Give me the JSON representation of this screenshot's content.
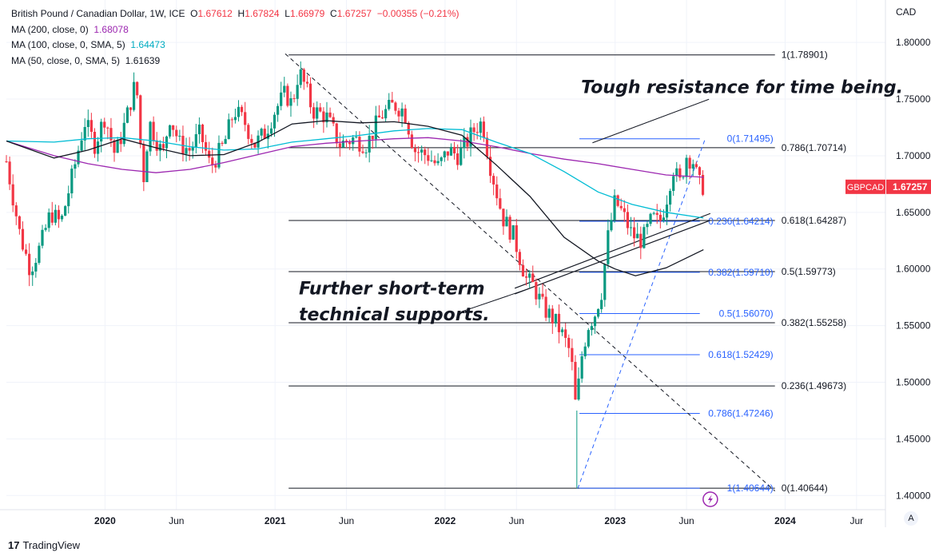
{
  "header": {
    "symbol": "British Pound / Canadian Dollar, 1W, ICE",
    "ohlc": {
      "o_label": "O",
      "o": "1.67612",
      "h_label": "H",
      "h": "1.67824",
      "l_label": "L",
      "l": "1.66979",
      "c_label": "C",
      "c": "1.67257",
      "change": "−0.00355 (−0.21%)"
    },
    "ma200_label": "MA (200, close, 0)",
    "ma200_value": "1.68078",
    "ma200_color": "#9c27b0",
    "ma100_label": "MA (100, close, 0, SMA, 5)",
    "ma100_value": "1.64473",
    "ma100_color": "#00bcd4",
    "ma50_label": "MA (50, close, 0, SMA, 5)",
    "ma50_value": "1.61639",
    "ma50_color": "#131722"
  },
  "branding": "TradingView",
  "corner_button": "A",
  "chart_data": {
    "type": "candlestick",
    "currency": "CAD",
    "price_tag": {
      "label": "GBPCAD",
      "value": "1.67257",
      "color": "#f23645"
    },
    "y_ticks": [
      "1.80000",
      "1.75000",
      "1.70000",
      "1.65000",
      "1.60000",
      "1.55000",
      "1.50000",
      "1.45000",
      "1.40000"
    ],
    "ylim": [
      1.3875,
      1.8375
    ],
    "x_ticks": [
      {
        "label": "2020",
        "bold": true,
        "t": 2020.0
      },
      {
        "label": "Jun",
        "bold": false,
        "t": 2020.42
      },
      {
        "label": "2021",
        "bold": true,
        "t": 2021.0
      },
      {
        "label": "Jun",
        "bold": false,
        "t": 2021.42
      },
      {
        "label": "2022",
        "bold": true,
        "t": 2022.0
      },
      {
        "label": "Jun",
        "bold": false,
        "t": 2022.42
      },
      {
        "label": "2023",
        "bold": true,
        "t": 2023.0
      },
      {
        "label": "Jun",
        "bold": false,
        "t": 2023.42
      },
      {
        "label": "2024",
        "bold": true,
        "t": 2024.0
      },
      {
        "label": "Jur",
        "bold": false,
        "t": 2024.42
      }
    ],
    "xlim": [
      2019.42,
      2024.59
    ],
    "price_path": [
      [
        2019.42,
        1.695
      ],
      [
        2019.5,
        1.63
      ],
      [
        2019.56,
        1.6
      ],
      [
        2019.62,
        1.62
      ],
      [
        2019.68,
        1.65
      ],
      [
        2019.74,
        1.64
      ],
      [
        2019.82,
        1.69
      ],
      [
        2019.88,
        1.73
      ],
      [
        2019.94,
        1.71
      ],
      [
        2020.0,
        1.735
      ],
      [
        2020.06,
        1.7
      ],
      [
        2020.12,
        1.73
      ],
      [
        2020.18,
        1.765
      ],
      [
        2020.2,
        1.74
      ],
      [
        2020.22,
        1.67
      ],
      [
        2020.26,
        1.73
      ],
      [
        2020.3,
        1.715
      ],
      [
        2020.34,
        1.7
      ],
      [
        2020.38,
        1.735
      ],
      [
        2020.44,
        1.71
      ],
      [
        2020.5,
        1.705
      ],
      [
        2020.56,
        1.72
      ],
      [
        2020.62,
        1.69
      ],
      [
        2020.7,
        1.71
      ],
      [
        2020.76,
        1.74
      ],
      [
        2020.82,
        1.73
      ],
      [
        2020.88,
        1.71
      ],
      [
        2020.94,
        1.72
      ],
      [
        2021.0,
        1.74
      ],
      [
        2021.06,
        1.755
      ],
      [
        2021.1,
        1.745
      ],
      [
        2021.14,
        1.775
      ],
      [
        2021.18,
        1.76
      ],
      [
        2021.22,
        1.74
      ],
      [
        2021.3,
        1.735
      ],
      [
        2021.38,
        1.71
      ],
      [
        2021.46,
        1.715
      ],
      [
        2021.54,
        1.71
      ],
      [
        2021.62,
        1.735
      ],
      [
        2021.7,
        1.745
      ],
      [
        2021.76,
        1.74
      ],
      [
        2021.82,
        1.705
      ],
      [
        2021.9,
        1.7
      ],
      [
        2021.96,
        1.69
      ],
      [
        2022.02,
        1.705
      ],
      [
        2022.08,
        1.7
      ],
      [
        2022.14,
        1.715
      ],
      [
        2022.18,
        1.725
      ],
      [
        2022.22,
        1.73
      ],
      [
        2022.26,
        1.695
      ],
      [
        2022.3,
        1.67
      ],
      [
        2022.34,
        1.645
      ],
      [
        2022.4,
        1.63
      ],
      [
        2022.44,
        1.61
      ],
      [
        2022.48,
        1.59
      ],
      [
        2022.52,
        1.585
      ],
      [
        2022.58,
        1.565
      ],
      [
        2022.64,
        1.555
      ],
      [
        2022.68,
        1.545
      ],
      [
        2022.74,
        1.525
      ],
      [
        2022.77,
        1.475
      ],
      [
        2022.8,
        1.52
      ],
      [
        2022.84,
        1.55
      ],
      [
        2022.88,
        1.56
      ],
      [
        2022.92,
        1.58
      ],
      [
        2022.96,
        1.63
      ],
      [
        2023.0,
        1.66
      ],
      [
        2023.04,
        1.65
      ],
      [
        2023.1,
        1.63
      ],
      [
        2023.16,
        1.625
      ],
      [
        2023.22,
        1.645
      ],
      [
        2023.26,
        1.64
      ],
      [
        2023.3,
        1.66
      ],
      [
        2023.34,
        1.69
      ],
      [
        2023.38,
        1.675
      ],
      [
        2023.42,
        1.7
      ],
      [
        2023.46,
        1.695
      ],
      [
        2023.49,
        1.675
      ],
      [
        2023.52,
        1.673
      ]
    ],
    "ma200": [
      [
        2019.42,
        1.713
      ],
      [
        2019.7,
        1.7
      ],
      [
        2019.9,
        1.693
      ],
      [
        2020.1,
        1.688
      ],
      [
        2020.3,
        1.685
      ],
      [
        2020.5,
        1.688
      ],
      [
        2020.7,
        1.694
      ],
      [
        2020.9,
        1.701
      ],
      [
        2021.1,
        1.708
      ],
      [
        2021.3,
        1.711
      ],
      [
        2021.5,
        1.713
      ],
      [
        2021.7,
        1.715
      ],
      [
        2021.9,
        1.716
      ],
      [
        2022.1,
        1.713
      ],
      [
        2022.3,
        1.708
      ],
      [
        2022.5,
        1.702
      ],
      [
        2022.7,
        1.697
      ],
      [
        2022.9,
        1.693
      ],
      [
        2023.1,
        1.688
      ],
      [
        2023.3,
        1.683
      ],
      [
        2023.52,
        1.681
      ]
    ],
    "ma100": [
      [
        2019.42,
        1.713
      ],
      [
        2019.7,
        1.712
      ],
      [
        2019.9,
        1.715
      ],
      [
        2020.1,
        1.716
      ],
      [
        2020.3,
        1.713
      ],
      [
        2020.5,
        1.708
      ],
      [
        2020.7,
        1.705
      ],
      [
        2020.9,
        1.706
      ],
      [
        2021.1,
        1.712
      ],
      [
        2021.3,
        1.715
      ],
      [
        2021.5,
        1.718
      ],
      [
        2021.7,
        1.722
      ],
      [
        2021.9,
        1.724
      ],
      [
        2022.1,
        1.723
      ],
      [
        2022.3,
        1.712
      ],
      [
        2022.5,
        1.702
      ],
      [
        2022.7,
        1.686
      ],
      [
        2022.9,
        1.668
      ],
      [
        2023.1,
        1.657
      ],
      [
        2023.3,
        1.65
      ],
      [
        2023.52,
        1.645
      ]
    ],
    "ma50": [
      [
        2019.42,
        1.713
      ],
      [
        2019.7,
        1.698
      ],
      [
        2019.9,
        1.705
      ],
      [
        2020.1,
        1.715
      ],
      [
        2020.3,
        1.707
      ],
      [
        2020.5,
        1.7
      ],
      [
        2020.7,
        1.701
      ],
      [
        2020.9,
        1.712
      ],
      [
        2021.1,
        1.728
      ],
      [
        2021.3,
        1.731
      ],
      [
        2021.5,
        1.729
      ],
      [
        2021.7,
        1.73
      ],
      [
        2021.9,
        1.726
      ],
      [
        2022.1,
        1.718
      ],
      [
        2022.3,
        1.692
      ],
      [
        2022.5,
        1.664
      ],
      [
        2022.7,
        1.628
      ],
      [
        2022.9,
        1.607
      ],
      [
        2023.0,
        1.6
      ],
      [
        2023.12,
        1.594
      ],
      [
        2023.3,
        1.601
      ],
      [
        2023.52,
        1.617
      ]
    ],
    "main_fib": {
      "t1": 2021.08,
      "t2": 2023.94,
      "levels": [
        {
          "label": "1(1.78901)",
          "price": 1.78901
        },
        {
          "label": "0.786(1.70714)",
          "price": 1.70714
        },
        {
          "label": "0.618(1.64287)",
          "price": 1.64287
        },
        {
          "label": "0.5(1.59773)",
          "price": 1.59773
        },
        {
          "label": "0.382(1.55258)",
          "price": 1.55258
        },
        {
          "label": "0.236(1.49673)",
          "price": 1.49673
        },
        {
          "label": "0(1.40644)",
          "price": 1.40644
        }
      ]
    },
    "ext_fib": {
      "t1": 2022.79,
      "t2": 2023.94,
      "levels": [
        {
          "label": "0(1.71495)",
          "price": 1.71495
        },
        {
          "label": "0.236(1.64214)",
          "price": 1.64214
        },
        {
          "label": "0.382(1.59710)",
          "price": 1.5971
        },
        {
          "label": "0.5(1.56070)",
          "price": 1.5607
        },
        {
          "label": "0.618(1.52429)",
          "price": 1.52429
        },
        {
          "label": "0.786(1.47246)",
          "price": 1.47246
        },
        {
          "label": "1(1.40644)",
          "price": 1.40644
        }
      ]
    },
    "annotations": [
      {
        "text": "Tough resistance for time being.",
        "t": 2022.8,
        "price": 1.7555,
        "pt_t": 2022.82,
        "pt_price": 1.71,
        "fs": 22
      },
      {
        "text": "Further short-term",
        "t": 2021.14,
        "price": 1.5775,
        "fs": 22
      },
      {
        "text": "technical supports.",
        "t": 2021.14,
        "price": 1.5545,
        "fs": 22
      }
    ]
  }
}
